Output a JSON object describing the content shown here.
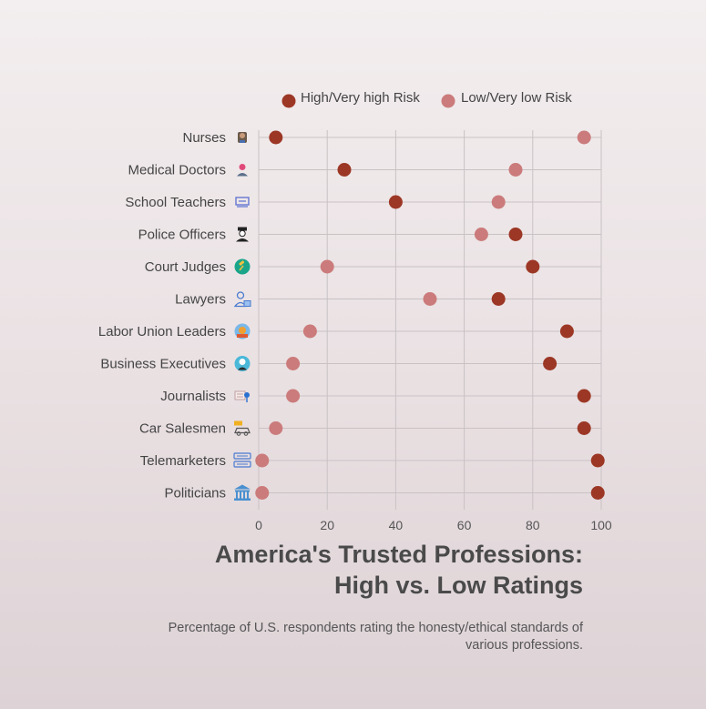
{
  "chart_data": {
    "type": "scatter",
    "title": "America's Trusted Professions: High vs. Low Ratings",
    "title_lines": [
      "America's Trusted Professions:",
      "High vs. Low Ratings"
    ],
    "subtitle": "Percentage of U.S. respondents rating the honesty/ethical standards of various professions.",
    "xlabel": "",
    "ylabel": "",
    "xlim": [
      0,
      100
    ],
    "x_ticks": [
      0,
      20,
      40,
      60,
      80,
      100
    ],
    "grid": true,
    "legend_position": "top",
    "categories": [
      "Nurses",
      "Medical Doctors",
      "School Teachers",
      "Police Officers",
      "Court Judges",
      "Lawyers",
      "Labor Union Leaders",
      "Business Executives",
      "Journalists",
      "Car Salesmen",
      "Telemarketers",
      "Politicians"
    ],
    "category_icons": [
      "nurse-icon",
      "doctor-icon",
      "teacher-icon",
      "police-officer-icon",
      "judge-gavel-icon",
      "lawyer-icon",
      "labor-union-icon",
      "business-executive-icon",
      "journalist-icon",
      "car-salesman-icon",
      "telemarketer-icon",
      "politician-icon"
    ],
    "series": [
      {
        "name": "High/Very high Risk",
        "color": "#9c3725",
        "values": [
          5,
          25,
          40,
          75,
          80,
          70,
          90,
          85,
          95,
          95,
          99,
          99
        ]
      },
      {
        "name": "Low/Very low Risk",
        "color": "#cb7b7b",
        "values": [
          95,
          75,
          70,
          65,
          20,
          50,
          15,
          10,
          10,
          5,
          1,
          1
        ]
      }
    ]
  }
}
